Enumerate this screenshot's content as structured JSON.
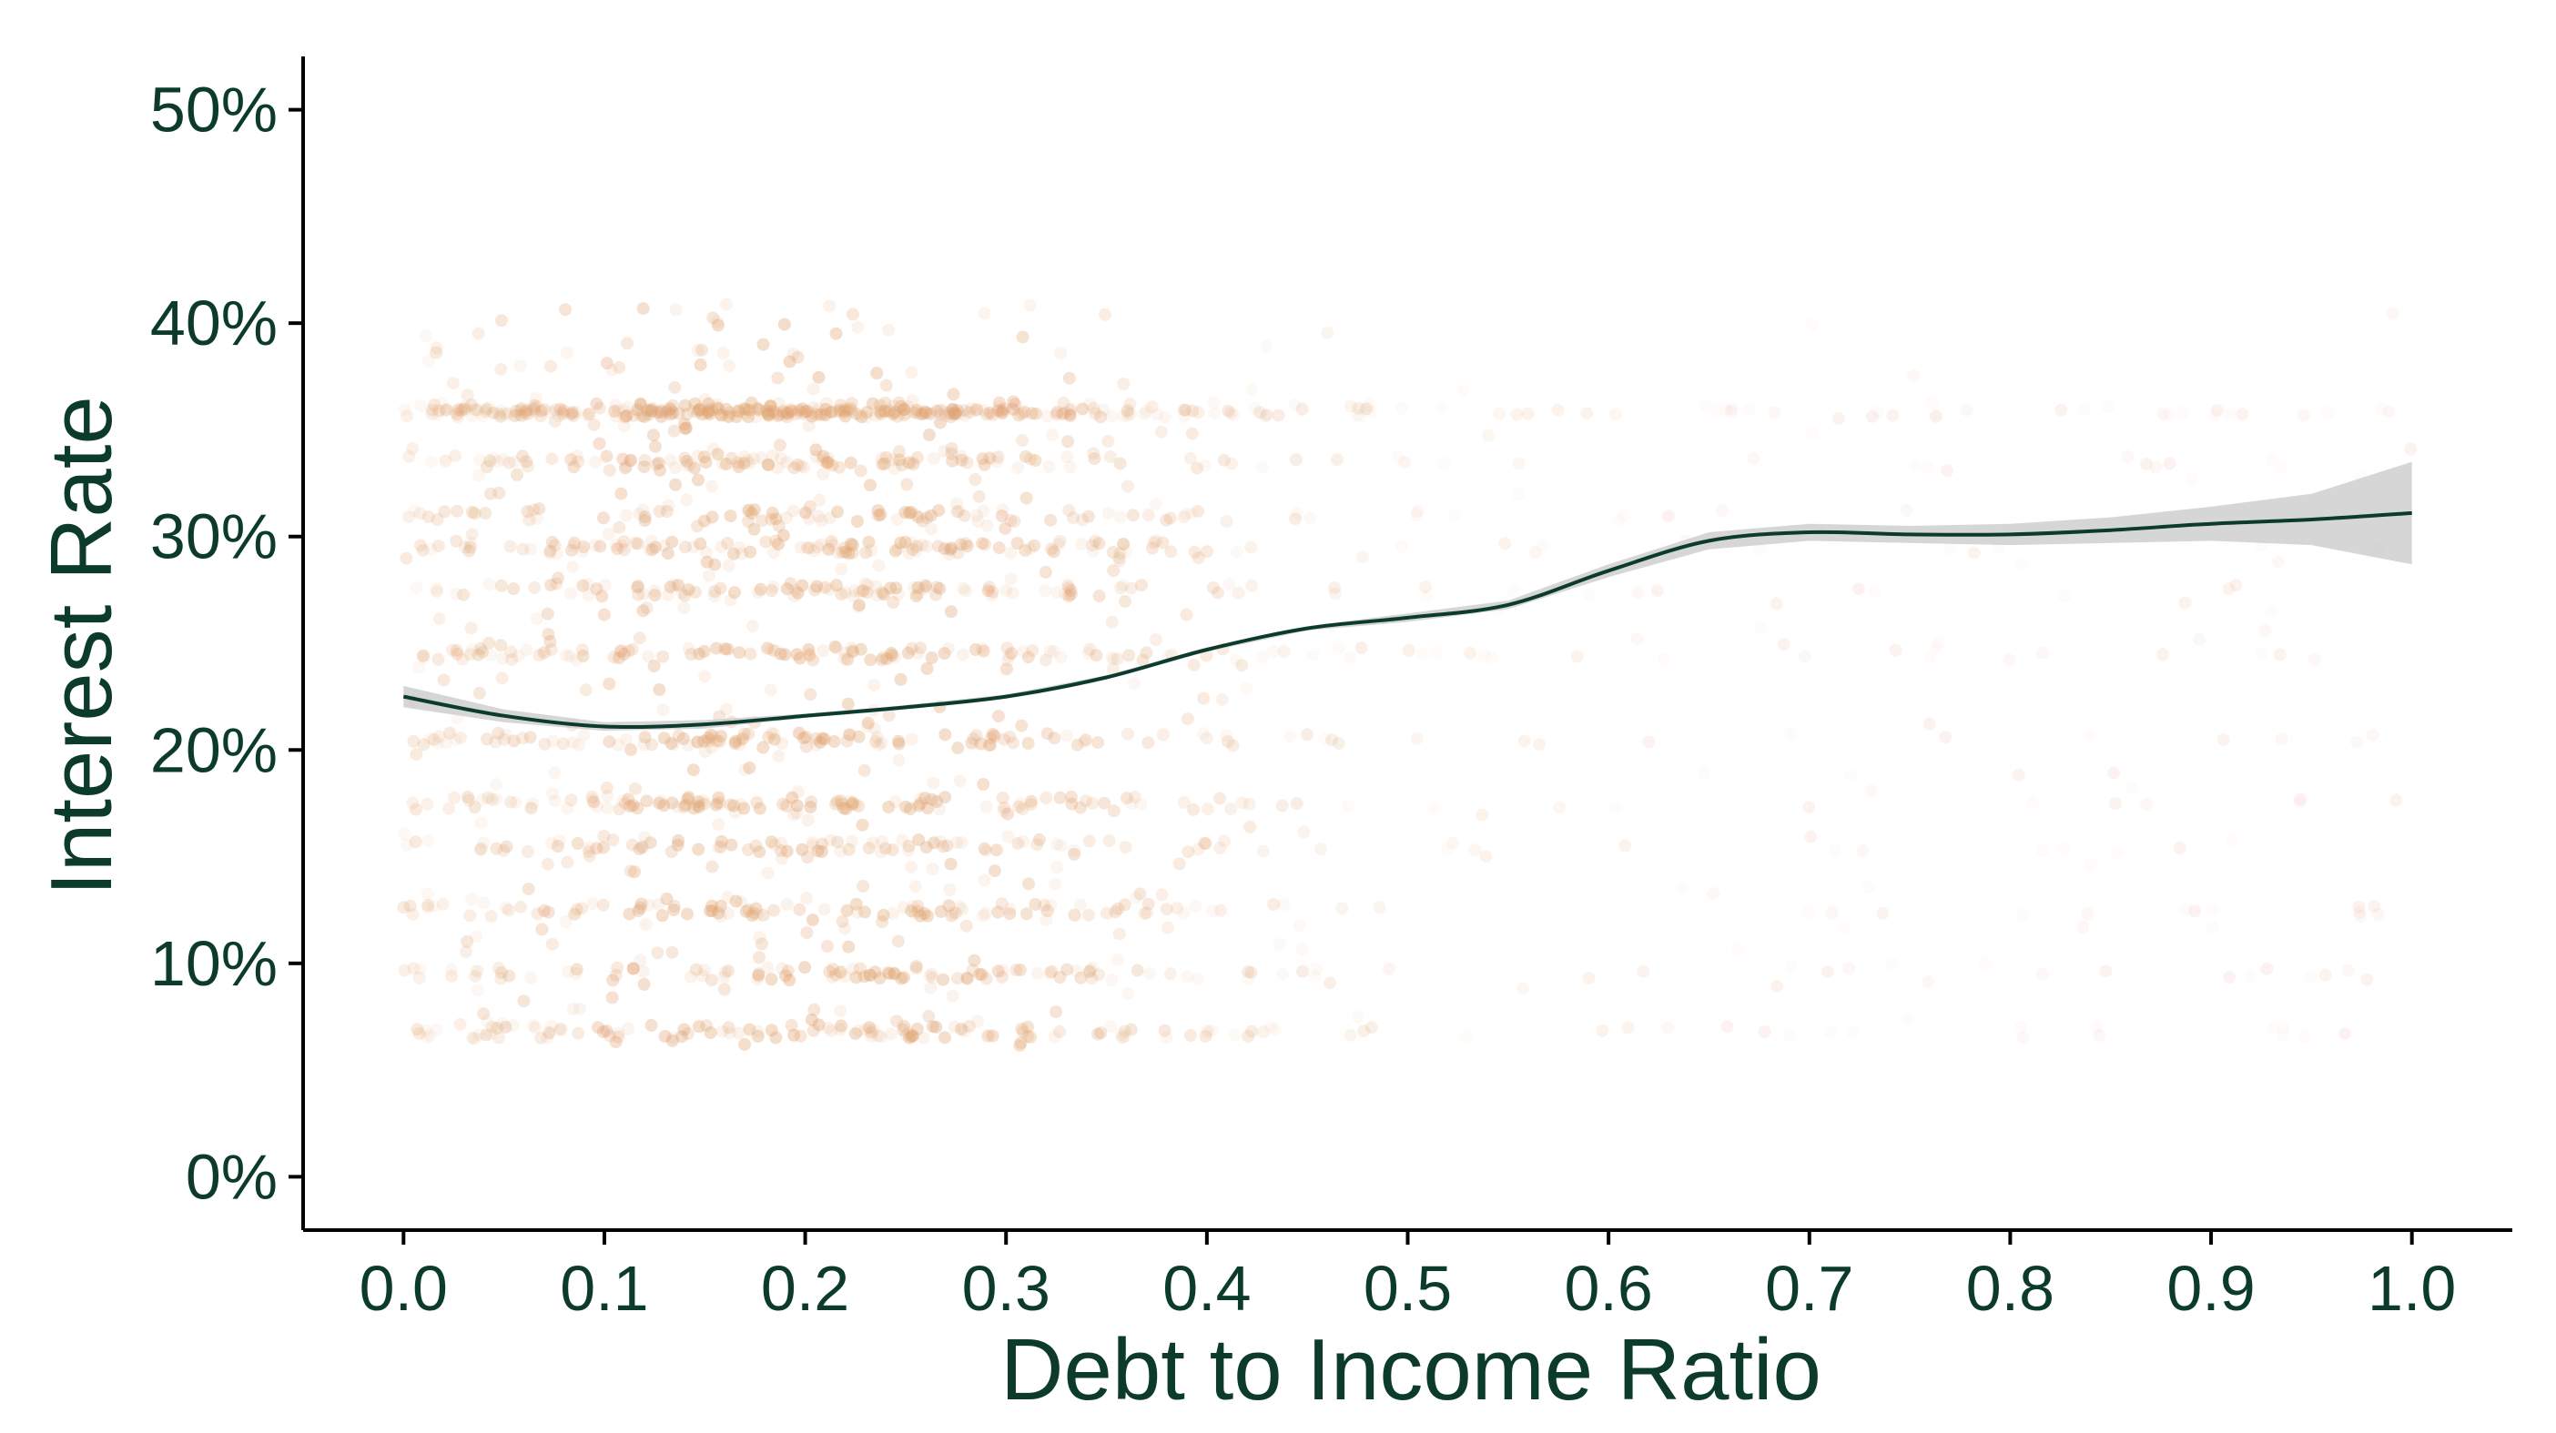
{
  "chart_data": {
    "type": "scatter",
    "title": "",
    "xlabel": "Debt to Income Ratio",
    "ylabel": "Interest Rate",
    "xlim": [
      -0.05,
      1.05
    ],
    "ylim": [
      -0.025,
      0.525
    ],
    "x_ticks": [
      0.0,
      0.1,
      0.2,
      0.3,
      0.4,
      0.5,
      0.6,
      0.7,
      0.8,
      0.9,
      1.0
    ],
    "x_tick_labels": [
      "0.0",
      "0.1",
      "0.2",
      "0.3",
      "0.4",
      "0.5",
      "0.6",
      "0.7",
      "0.8",
      "0.9",
      "1.0"
    ],
    "y_ticks": [
      0.0,
      0.1,
      0.2,
      0.3,
      0.4,
      0.5
    ],
    "y_tick_labels": [
      "0%",
      "10%",
      "20%",
      "30%",
      "40%",
      "50%"
    ],
    "grid": false,
    "legend": "none",
    "colors": {
      "points": "#e3a574",
      "smooth_line": "#0c3b2e",
      "confidence_band": "#cccccc",
      "text": "#0c3b2e"
    },
    "scatter_density": {
      "description_of_mass": "dense band of semi-transparent points",
      "x_range_dense": [
        0.02,
        0.4
      ],
      "y_range_dense": [
        0.07,
        0.36
      ],
      "rate_bands": [
        0.068,
        0.095,
        0.125,
        0.155,
        0.175,
        0.205,
        0.245,
        0.275,
        0.295,
        0.31,
        0.335,
        0.36
      ]
    },
    "smooth_line": {
      "x": [
        0.0,
        0.05,
        0.1,
        0.15,
        0.2,
        0.25,
        0.3,
        0.35,
        0.4,
        0.45,
        0.5,
        0.55,
        0.6,
        0.65,
        0.7,
        0.75,
        0.8,
        0.85,
        0.9,
        0.95,
        1.0
      ],
      "y": [
        0.225,
        0.216,
        0.211,
        0.212,
        0.216,
        0.22,
        0.225,
        0.234,
        0.247,
        0.257,
        0.262,
        0.268,
        0.284,
        0.298,
        0.302,
        0.301,
        0.301,
        0.303,
        0.306,
        0.308,
        0.311
      ],
      "lower": [
        0.22,
        0.213,
        0.209,
        0.21,
        0.215,
        0.219,
        0.224,
        0.233,
        0.246,
        0.256,
        0.26,
        0.266,
        0.281,
        0.294,
        0.298,
        0.297,
        0.296,
        0.297,
        0.298,
        0.296,
        0.287
      ],
      "upper": [
        0.23,
        0.219,
        0.213,
        0.214,
        0.217,
        0.221,
        0.226,
        0.235,
        0.248,
        0.258,
        0.264,
        0.27,
        0.287,
        0.302,
        0.306,
        0.305,
        0.306,
        0.309,
        0.314,
        0.32,
        0.335
      ]
    }
  }
}
